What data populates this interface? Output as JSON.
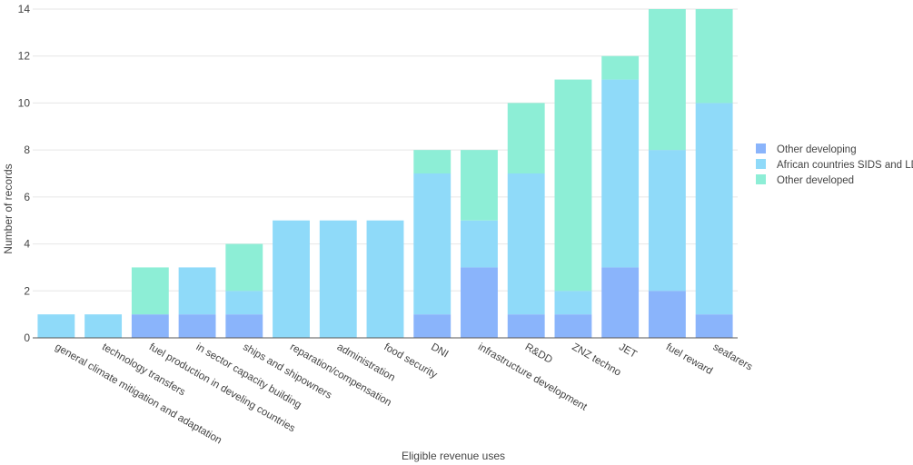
{
  "chart_data": {
    "type": "bar",
    "stacked": true,
    "xlabel": "Eligible revenue uses",
    "ylabel": "Number of records",
    "ylim": [
      0,
      14
    ],
    "yticks": [
      0,
      2,
      4,
      6,
      8,
      10,
      12,
      14
    ],
    "grid": true,
    "legend_position": "right",
    "categories": [
      "general climate mitigation and adaptation",
      "technology transfers",
      "fuel production in develing countries",
      "in sector capacity building",
      "ships and shipowners",
      "reparation/compensation",
      "administration",
      "food security",
      "DNI",
      "infrastructure development",
      "R&DD",
      "ZNZ techno",
      "JET",
      "fuel reward",
      "seafarers"
    ],
    "series": [
      {
        "name": "Other developing",
        "color": "#8ab4fb",
        "values": [
          0,
          0,
          1,
          1,
          1,
          0,
          0,
          0,
          1,
          3,
          1,
          1,
          3,
          2,
          1
        ]
      },
      {
        "name": "African countries SIDS and LDCs",
        "color": "#8fdaf9",
        "values": [
          1,
          1,
          0,
          2,
          1,
          5,
          5,
          5,
          6,
          2,
          6,
          1,
          8,
          6,
          9
        ]
      },
      {
        "name": "Other developed",
        "color": "#8deed6",
        "values": [
          0,
          0,
          2,
          0,
          2,
          0,
          0,
          0,
          1,
          3,
          3,
          9,
          1,
          6,
          4
        ]
      }
    ]
  }
}
